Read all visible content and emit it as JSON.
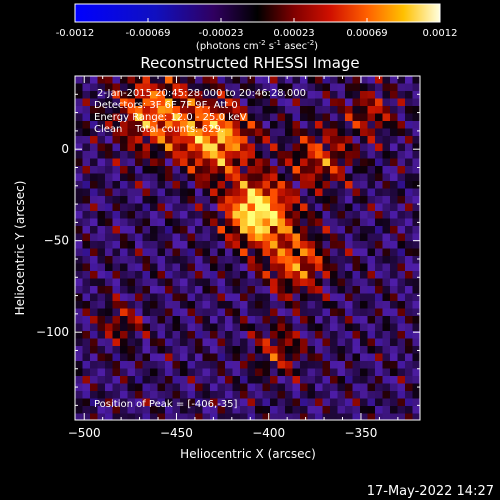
{
  "chart_data": {
    "type": "heatmap",
    "title": "Reconstructed RHESSI Image",
    "xlabel": "Heliocentric X (arcsec)",
    "ylabel": "Heliocentric Y (arcsec)",
    "xlim": [
      -505,
      -318
    ],
    "ylim": [
      -148,
      40
    ],
    "xticks": [
      -500,
      -450,
      -400,
      -350
    ],
    "yticks": [
      0,
      -50,
      -100
    ],
    "colorbar": {
      "range": [
        -0.0012,
        0.0012
      ],
      "ticks": [
        "-0.0012",
        "-0.00069",
        "-0.00023",
        "0.00023",
        "0.00069",
        "0.0012"
      ],
      "label_prefix": "(photons cm",
      "label_exp1": "-2",
      "label_mid": " s",
      "label_exp2": "-1",
      "label_mid2": " asec",
      "label_exp3": "-2",
      "label_suffix": ")"
    },
    "annotations": {
      "line1": "2-Jan-2015 20:45:28.000 to 20:46:28.000",
      "line2": "Detectors: 3F 6F 7F 9F, Att 0",
      "line3": "Energy Range: 12.0 - 25.0 keV",
      "line4": "Clean    Total counts: 629.",
      "peak": "Position of Peak = [-406,-35]"
    },
    "peak": [
      -406,
      -35
    ],
    "sources": [
      {
        "x": -406,
        "y": -35,
        "sigma": 12,
        "amp": 1.0
      },
      {
        "x": -428,
        "y": 5,
        "sigma": 14,
        "amp": 0.72
      },
      {
        "x": -462,
        "y": 20,
        "sigma": 15,
        "amp": 0.6
      },
      {
        "x": -385,
        "y": -62,
        "sigma": 12,
        "amp": 0.55
      },
      {
        "x": -372,
        "y": -5,
        "sigma": 12,
        "amp": 0.45
      },
      {
        "x": -345,
        "y": 20,
        "sigma": 10,
        "amp": 0.35
      },
      {
        "x": -395,
        "y": -110,
        "sigma": 10,
        "amp": 0.35
      },
      {
        "x": -480,
        "y": -95,
        "sigma": 9,
        "amp": 0.3
      }
    ],
    "colors": {
      "background": "#000000",
      "text": "#ffffff",
      "low": "#4018a8",
      "high": "#ffff40"
    }
  },
  "footer": {
    "date": "17-May-2022 14:27"
  }
}
